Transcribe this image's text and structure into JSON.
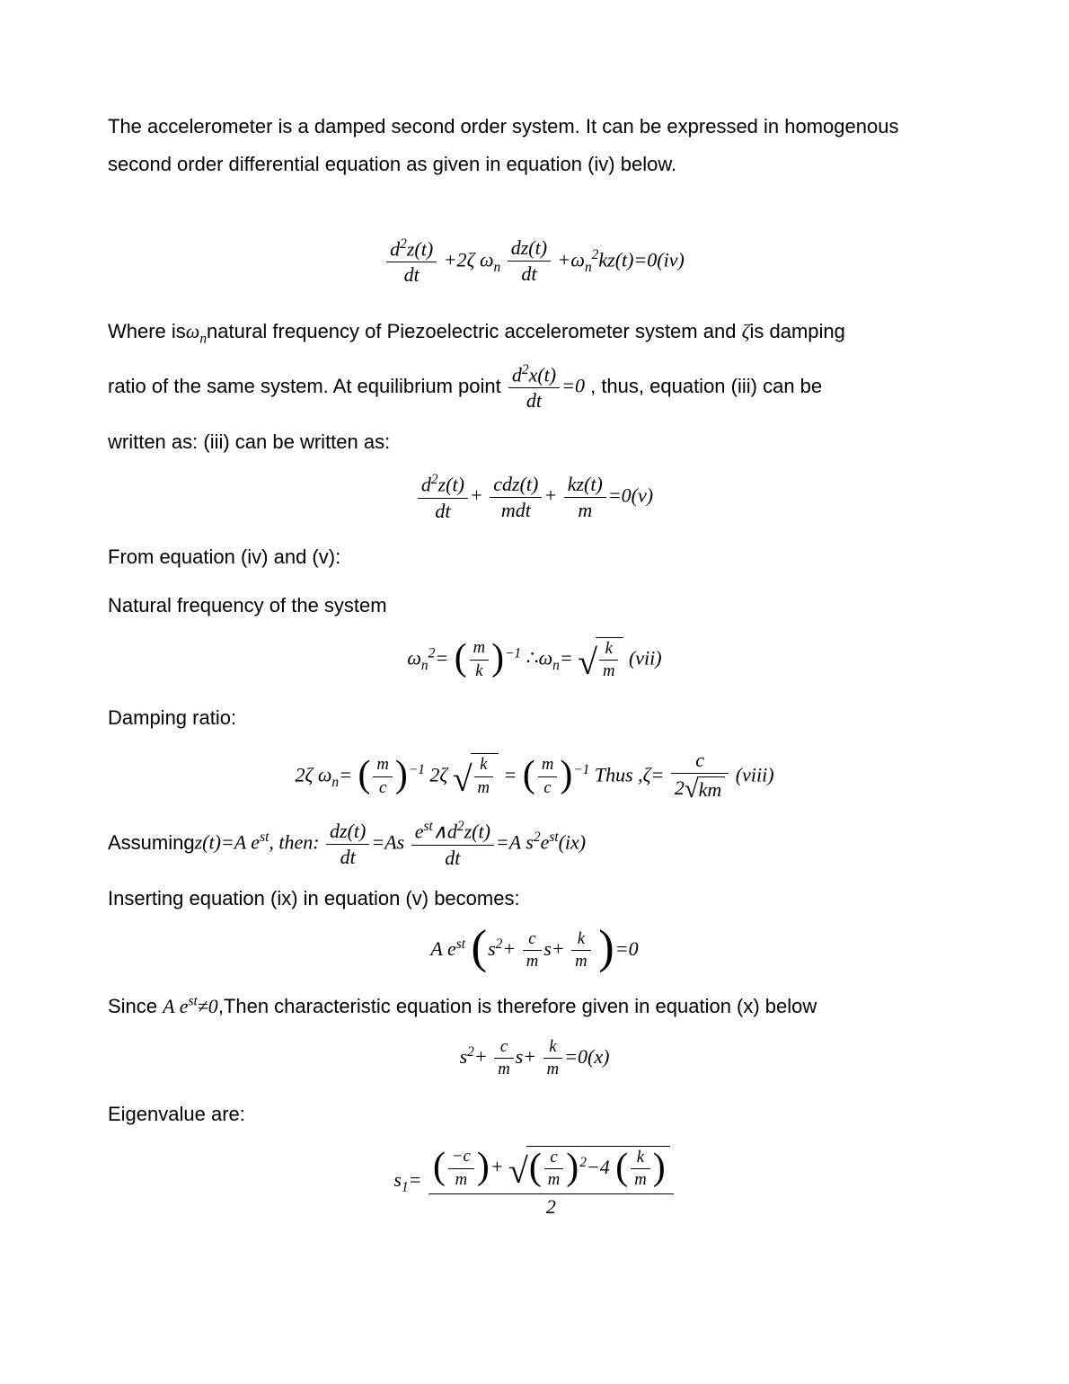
{
  "para1": "The accelerometer is a damped second order system. It can be expressed in homogenous second order differential equation as given in equation (iv) below.",
  "eq_iv": {
    "t1_num": "d",
    "t1_sup": "2",
    "t1_z": "z(t)",
    "t1_den": "dt",
    "plus1": "+2",
    "zeta": "ζ",
    "omega": "ω",
    "n": "n",
    "t2_num": "dz(t)",
    "t2_den": "dt",
    "plus2": "+",
    "kz": "kz",
    "t_tail": "(t)=0(iv)"
  },
  "para2_a": "Where is",
  "para2_b": "natural frequency of Piezoelectric accelerometer system and ",
  "para2_c": "is damping",
  "para2_d": "ratio of the same system. At equilibrium point ",
  "para2_e": " , thus, equation (iii) can be",
  "para2_f": "written as: (iii) can be written as:",
  "eq_inline_x": {
    "num_a": "d",
    "num_sup": "2",
    "num_b": "x(t)",
    "den": "dt",
    "eq0": "=0"
  },
  "eq_v": {
    "t1_num_a": "d",
    "t1_num_sup": "2",
    "t1_num_b": "z(t)",
    "t1_den": "dt",
    "t2_num": "cdz(t)",
    "t2_den": "mdt",
    "t3_num": "kz(t)",
    "t3_den": "m",
    "tail": "=0(v)"
  },
  "para3": "From equation (iv) and (v):",
  "para4": "Natural frequency of the system",
  "eq_vii": {
    "lhs_om": "ω",
    "lhs_n": "n",
    "lhs_sq": "2",
    "eq": "=",
    "pL": "(",
    "pR": ")",
    "mk_num": "m",
    "mk_den": "k",
    "inv": "−1",
    "there": "∴",
    "rhs_om": "ω",
    "rhs_n": "n",
    "eq2": "=",
    "sqrt_num": "k",
    "sqrt_den": "m",
    "tail": "(vii)"
  },
  "para5": "Damping ratio:",
  "eq_viii": {
    "two": "2",
    "zeta": "ζ",
    "om": "ω",
    "n": "n",
    "eq": "=",
    "mc_num": "m",
    "mc_den": "c",
    "inv": "−1",
    "two2": "2",
    "zeta2": "ζ",
    "sq_num": "k",
    "sq_den": "m",
    "eq2": "=",
    "mc2_num": "m",
    "mc2_den": "c",
    "thus": "Thus ,",
    "zeta3": "ζ",
    "eq3": "=",
    "c": "c",
    "den2": "2",
    "km": "km",
    "tail": "(viii)"
  },
  "para6_a": "Assuming",
  "eq_ix": {
    "z": "z",
    "t": "(t)=A e",
    "st": "st",
    "then": ", then:",
    "dz_num": "dz(t)",
    "dz_den": "dt",
    "eqAs": "=As",
    "mid_num_a": "e",
    "mid_num_st": "st",
    "mid_num_wedge": "∧d",
    "mid_num_sup": "2",
    "mid_num_b": "z(t)",
    "mid_den": "dt",
    "eq2": "=A s",
    "s2": "2",
    "e": "e",
    "st2": "st",
    "tail": "(ix)"
  },
  "para7": "Inserting equation (ix) in equation (v) becomes:",
  "eq_after_ix": {
    "Ae": "A e",
    "st": "st",
    "s2": "s",
    "sup2": "2",
    "plus": "+",
    "cm_num": "c",
    "cm_den": "m",
    "s": "s+",
    "km_num": "k",
    "km_den": "m",
    "eq0": "=0"
  },
  "para8_a": "Since ",
  "para8_inline": {
    "Ae": "A e",
    "st": "st",
    "neq": "≠0"
  },
  "para8_b": ",Then characteristic equation is therefore given in equation (x) below",
  "eq_x": {
    "s": "s",
    "sup": "2",
    "plus": "+",
    "cm_num": "c",
    "cm_den": "m",
    "s2": "s+",
    "km_num": "k",
    "km_den": "m",
    "tail": "=0(x)"
  },
  "para9": "Eigenvalue are:",
  "eq_s1": {
    "lhs": "s",
    "sub": "1",
    "eq": "=",
    "neg_c": "−c",
    "m": "m",
    "plus": "+",
    "cm_num": "c",
    "cm_den": "m",
    "sq": "2",
    "minus4": "−4",
    "km_num": "k",
    "km_den": "m",
    "den": "2"
  }
}
